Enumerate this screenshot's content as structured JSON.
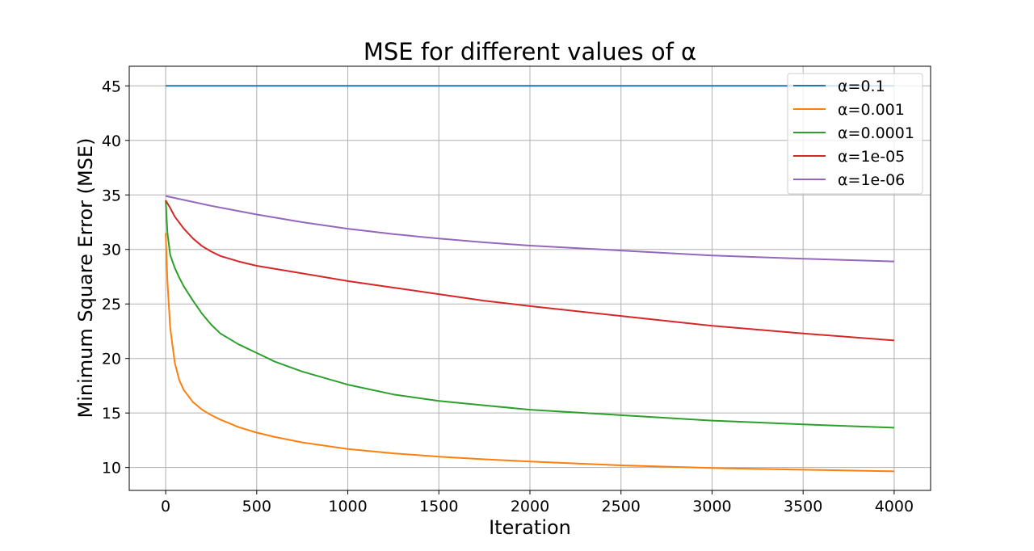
{
  "chart_data": {
    "type": "line",
    "title": "MSE for different values of α",
    "xlabel": "Iteration",
    "ylabel": "Minimum Square Error (MSE)",
    "xlim": [
      -200,
      4200
    ],
    "ylim": [
      7.9,
      46.8
    ],
    "xticks": [
      0,
      500,
      1000,
      1500,
      2000,
      2500,
      3000,
      3500,
      4000
    ],
    "yticks": [
      10,
      15,
      20,
      25,
      30,
      35,
      40,
      45
    ],
    "grid": true,
    "legend_position": "top-right",
    "series": [
      {
        "name": "α=0.1",
        "color": "#1f77b4",
        "x": [
          0,
          4000
        ],
        "y": [
          45.0,
          45.0
        ]
      },
      {
        "name": "α=0.001",
        "color": "#ff7f0e",
        "x": [
          0,
          10,
          25,
          50,
          75,
          100,
          150,
          200,
          250,
          300,
          400,
          500,
          600,
          750,
          1000,
          1250,
          1500,
          1750,
          2000,
          2500,
          3000,
          3500,
          4000
        ],
        "y": [
          31.5,
          27.0,
          22.8,
          19.6,
          18.0,
          17.1,
          16.0,
          15.3,
          14.8,
          14.4,
          13.7,
          13.2,
          12.8,
          12.3,
          11.7,
          11.3,
          11.0,
          10.75,
          10.55,
          10.2,
          9.95,
          9.8,
          9.65
        ]
      },
      {
        "name": "α=0.0001",
        "color": "#2ca02c",
        "x": [
          0,
          10,
          25,
          50,
          75,
          100,
          150,
          200,
          250,
          300,
          400,
          500,
          600,
          750,
          1000,
          1250,
          1500,
          1750,
          2000,
          2500,
          3000,
          3500,
          4000
        ],
        "y": [
          34.5,
          31.5,
          29.5,
          28.3,
          27.4,
          26.6,
          25.3,
          24.1,
          23.1,
          22.3,
          21.3,
          20.5,
          19.7,
          18.8,
          17.6,
          16.7,
          16.1,
          15.7,
          15.3,
          14.8,
          14.3,
          13.95,
          13.65
        ]
      },
      {
        "name": "α=1e-05",
        "color": "#d62728",
        "x": [
          0,
          25,
          50,
          100,
          150,
          200,
          250,
          300,
          400,
          500,
          750,
          1000,
          1250,
          1500,
          1750,
          2000,
          2500,
          3000,
          3500,
          4000
        ],
        "y": [
          34.5,
          33.8,
          33.0,
          31.9,
          31.0,
          30.3,
          29.8,
          29.4,
          28.9,
          28.5,
          27.8,
          27.1,
          26.5,
          25.9,
          25.3,
          24.8,
          23.9,
          23.0,
          22.3,
          21.65
        ]
      },
      {
        "name": "α=1e-06",
        "color": "#9467bd",
        "x": [
          0,
          250,
          500,
          750,
          1000,
          1250,
          1500,
          1750,
          2000,
          2500,
          3000,
          3500,
          4000
        ],
        "y": [
          34.9,
          34.0,
          33.2,
          32.5,
          31.9,
          31.4,
          31.0,
          30.65,
          30.35,
          29.9,
          29.45,
          29.15,
          28.9
        ]
      }
    ]
  }
}
